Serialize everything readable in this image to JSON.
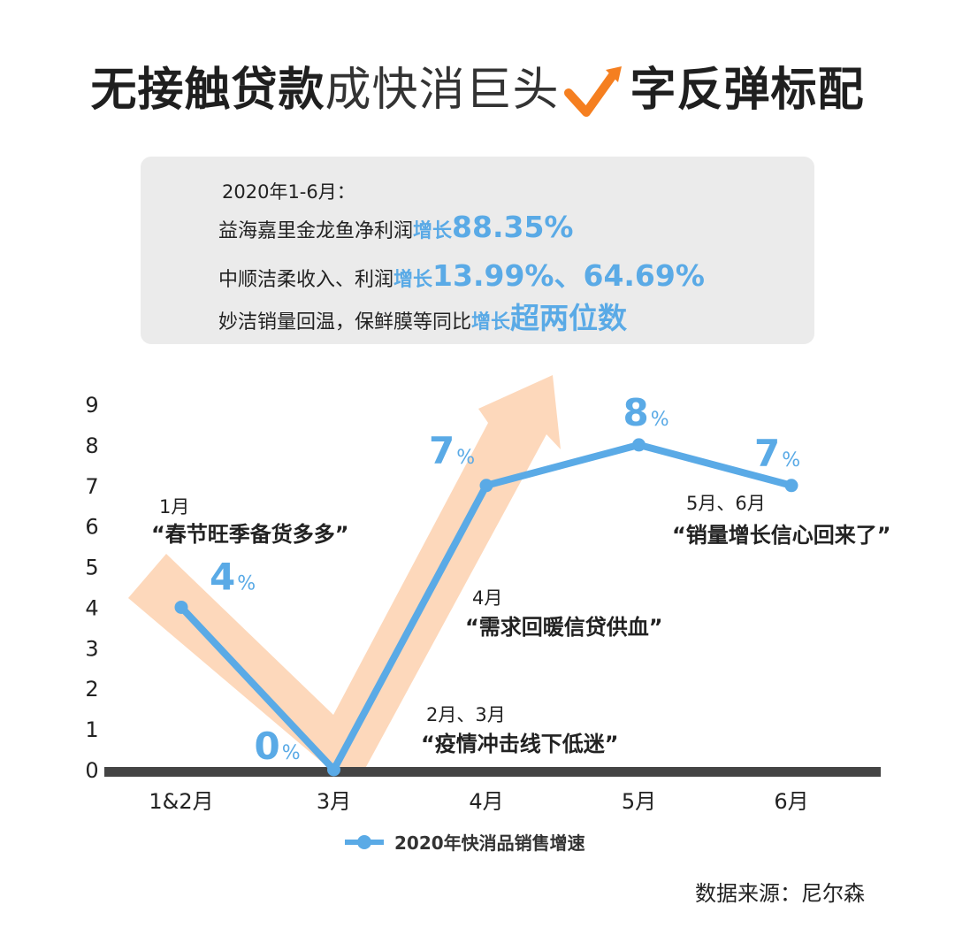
{
  "title": {
    "part1": "无接触贷款",
    "part2": "成快消巨头",
    "part3": "字反弹标配",
    "check_icon": "orange-checkmark-arrow-icon"
  },
  "info": {
    "period": "2020年1-6月：",
    "lines": [
      {
        "text": "益海嘉里金龙鱼净利润",
        "hl_small": "增长",
        "hl_big": "88.35%"
      },
      {
        "text": "中顺洁柔收入、利润",
        "hl_small": "增长",
        "hl_big": "13.99%、64.69%"
      },
      {
        "text": "妙洁销量回温，保鲜膜等同比",
        "hl_small": "增长",
        "hl_big": "超两位数"
      }
    ]
  },
  "chart_data": {
    "type": "line",
    "categories": [
      "1&2月",
      "3月",
      "4月",
      "5月",
      "6月"
    ],
    "series": [
      {
        "name": "2020年快消品销售增速",
        "values": [
          4,
          0,
          7,
          8,
          7
        ]
      }
    ],
    "data_labels": [
      {
        "num": "4",
        "unit": "%"
      },
      {
        "num": "0",
        "unit": "%"
      },
      {
        "num": "7",
        "unit": "%"
      },
      {
        "num": "8",
        "unit": "%"
      },
      {
        "num": "7",
        "unit": "%"
      }
    ],
    "ylim": [
      0,
      9
    ],
    "yticks": [
      "0",
      "1",
      "2",
      "3",
      "4",
      "5",
      "6",
      "7",
      "8",
      "9"
    ],
    "grid": false,
    "legend_position": "bottom-center",
    "annotations": [
      {
        "month": "1月",
        "quote": "“春节旺季备货多多”"
      },
      {
        "month": "2月、3月",
        "quote": "“疫情冲击线下低迷”"
      },
      {
        "month": "4月",
        "quote": "“需求回暖信贷供血”"
      },
      {
        "month": "5月、6月",
        "quote": "“销量增长信心回来了”"
      }
    ],
    "colors": {
      "line": "#5aaae6",
      "rebound_arrow": "#fdd8bb",
      "axis": "#444444",
      "check_icon": "#f57f20"
    }
  },
  "source": "数据来源：尼尔森"
}
